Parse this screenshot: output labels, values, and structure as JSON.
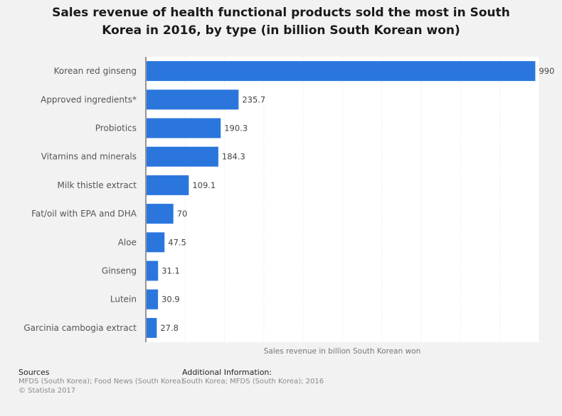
{
  "title_line1": "Sales revenue of health functional products sold the most in South",
  "title_line2": "Korea in 2016, by type (in billion South Korean won)",
  "chart_data": {
    "type": "bar",
    "orientation": "horizontal",
    "categories": [
      "Korean red ginseng",
      "Approved ingredients*",
      "Probiotics",
      "Vitamins and minerals",
      "Milk thistle extract",
      "Fat/oil with EPA and DHA",
      "Aloe",
      "Ginseng",
      "Lutein",
      "Garcinia cambogia extract"
    ],
    "values": [
      990,
      235.7,
      190.3,
      184.3,
      109.1,
      70,
      47.5,
      31.1,
      30.9,
      27.8
    ],
    "value_labels": [
      "990",
      "235.7",
      "190.3",
      "184.3",
      "109.1",
      "70",
      "47.5",
      "31.1",
      "30.9",
      "27.8"
    ],
    "xlabel": "Sales revenue in billion South Korean won",
    "ylabel": "",
    "xlim": [
      0,
      1000
    ],
    "grid": true,
    "bar_color": "#2a76dd"
  },
  "footer": {
    "sources_head": "Sources",
    "sources_text": "MFDS (South Korea); Food News (South Korea)",
    "copyright": "© Statista 2017",
    "info_head": "Additional Information:",
    "info_text": "South Korea; MFDS (South Korea); 2016"
  }
}
